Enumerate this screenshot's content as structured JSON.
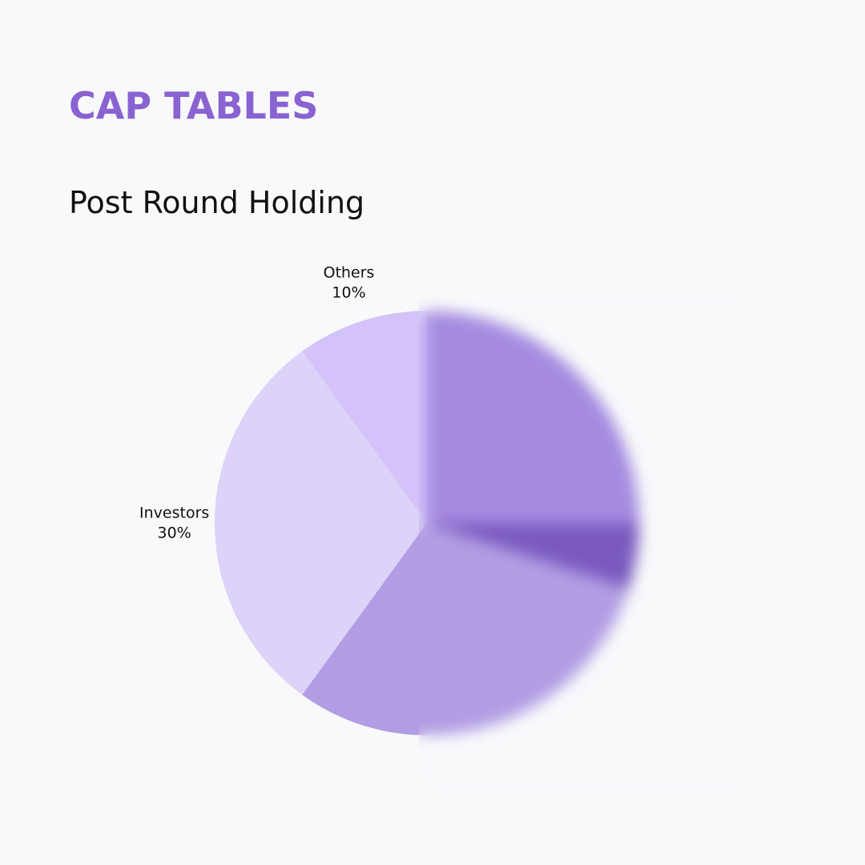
{
  "header": {
    "title": "CAP TABLES"
  },
  "chart_data": {
    "type": "pie",
    "title": "Post Round Holding",
    "categories": [
      null,
      null,
      null,
      "Investors",
      "Others"
    ],
    "values": [
      25,
      5,
      30,
      30,
      10
    ],
    "value_labels": [
      null,
      null,
      null,
      "30%",
      "10%"
    ],
    "colors": [
      "#a48be0",
      "#7a5abf",
      "#b19de3",
      "#ddd2f8",
      "#d3c3f8"
    ]
  }
}
